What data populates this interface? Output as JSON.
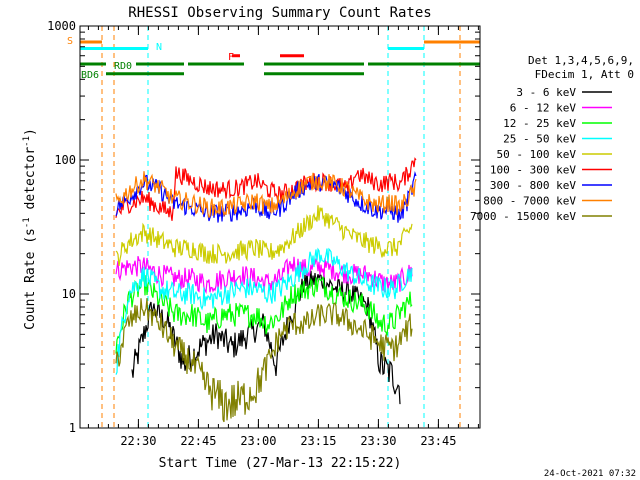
{
  "chart_data": {
    "type": "line",
    "title": "RHESSI Observing Summary Count Rates",
    "xlabel": "Start Time (27-Mar-13 22:15:22)",
    "ylabel": "Count Rate (s",
    "ylabel_sup1": "-1",
    "ylabel_mid": " detector",
    "ylabel_sup2": "-1",
    "ylabel_end": ")",
    "y_scale": "log",
    "ylim": [
      1,
      1000
    ],
    "xlim_minutes": [
      0,
      100
    ],
    "y_ticks": [
      "1",
      "10",
      "100",
      "1000"
    ],
    "x_ticks": [
      {
        "label": "22:30",
        "min": 14.6
      },
      {
        "label": "22:45",
        "min": 29.6
      },
      {
        "label": "23:00",
        "min": 44.6
      },
      {
        "label": "23:15",
        "min": 59.6
      },
      {
        "label": "23:30",
        "min": 74.6
      },
      {
        "label": "23:45",
        "min": 89.6
      }
    ],
    "legend_position": "right",
    "legend_header": [
      "Det 1,3,4,5,6,9,",
      "FDecim 1, Att 0"
    ],
    "series": [
      {
        "name": "3 - 6 keV",
        "color": "#000000",
        "values": [
          [
            13,
            2.5
          ],
          [
            18,
            8
          ],
          [
            22,
            6
          ],
          [
            26,
            3
          ],
          [
            30,
            4
          ],
          [
            34,
            5
          ],
          [
            38,
            4
          ],
          [
            42,
            5
          ],
          [
            46,
            6
          ],
          [
            49,
            3
          ],
          [
            52,
            6
          ],
          [
            56,
            12
          ],
          [
            60,
            13
          ],
          [
            64,
            11
          ],
          [
            68,
            10
          ],
          [
            72,
            8
          ],
          [
            75,
            3
          ],
          [
            78,
            2.5
          ],
          [
            80,
            2
          ]
        ]
      },
      {
        "name": "6 - 12 keV",
        "color": "#ff00ff",
        "values": [
          [
            9,
            15
          ],
          [
            12,
            16
          ],
          [
            16,
            16
          ],
          [
            20,
            14
          ],
          [
            24,
            13
          ],
          [
            28,
            13
          ],
          [
            32,
            12
          ],
          [
            36,
            13
          ],
          [
            40,
            14
          ],
          [
            44,
            13
          ],
          [
            47,
            12
          ],
          [
            50,
            13
          ],
          [
            53,
            17
          ],
          [
            57,
            15
          ],
          [
            60,
            16
          ],
          [
            64,
            15
          ],
          [
            68,
            14
          ],
          [
            72,
            14
          ],
          [
            76,
            12
          ],
          [
            79,
            12
          ],
          [
            81,
            13
          ],
          [
            83,
            15
          ]
        ]
      },
      {
        "name": "12 - 25 keV",
        "color": "#00ff00",
        "values": [
          [
            9,
            4
          ],
          [
            12,
            9
          ],
          [
            16,
            12
          ],
          [
            20,
            9
          ],
          [
            24,
            7
          ],
          [
            28,
            7
          ],
          [
            32,
            6
          ],
          [
            36,
            7
          ],
          [
            40,
            7
          ],
          [
            44,
            7
          ],
          [
            47,
            6
          ],
          [
            50,
            7
          ],
          [
            53,
            10
          ],
          [
            57,
            11
          ],
          [
            60,
            12
          ],
          [
            64,
            10
          ],
          [
            68,
            9
          ],
          [
            72,
            8
          ],
          [
            75,
            6
          ],
          [
            78,
            6
          ],
          [
            81,
            8
          ],
          [
            83,
            9
          ]
        ]
      },
      {
        "name": "25 - 50 keV",
        "color": "#00ffff",
        "values": [
          [
            9,
            3
          ],
          [
            12,
            10
          ],
          [
            16,
            14
          ],
          [
            20,
            11
          ],
          [
            24,
            10
          ],
          [
            28,
            10
          ],
          [
            32,
            9
          ],
          [
            36,
            10
          ],
          [
            40,
            11
          ],
          [
            44,
            11
          ],
          [
            47,
            10
          ],
          [
            50,
            11
          ],
          [
            53,
            13
          ],
          [
            57,
            17
          ],
          [
            60,
            20
          ],
          [
            64,
            17
          ],
          [
            68,
            14
          ],
          [
            72,
            12
          ],
          [
            76,
            11
          ],
          [
            79,
            11
          ],
          [
            81,
            13
          ],
          [
            83,
            15
          ]
        ]
      },
      {
        "name": "50 - 100 keV",
        "color": "#cccc00",
        "values": [
          [
            9,
            18
          ],
          [
            12,
            24
          ],
          [
            16,
            29
          ],
          [
            20,
            25
          ],
          [
            24,
            22
          ],
          [
            28,
            22
          ],
          [
            32,
            20
          ],
          [
            36,
            20
          ],
          [
            40,
            21
          ],
          [
            44,
            22
          ],
          [
            47,
            20
          ],
          [
            50,
            22
          ],
          [
            53,
            26
          ],
          [
            57,
            34
          ],
          [
            60,
            40
          ],
          [
            64,
            33
          ],
          [
            68,
            27
          ],
          [
            72,
            24
          ],
          [
            76,
            22
          ],
          [
            79,
            22
          ],
          [
            81,
            26
          ],
          [
            83,
            32
          ]
        ]
      },
      {
        "name": "100 - 300 keV",
        "color": "#ff0000",
        "values": [
          [
            9,
            40
          ],
          [
            12,
            47
          ],
          [
            16,
            52
          ],
          [
            20,
            44
          ],
          [
            23,
            40
          ],
          [
            24,
            80
          ],
          [
            28,
            70
          ],
          [
            32,
            62
          ],
          [
            36,
            60
          ],
          [
            40,
            62
          ],
          [
            44,
            70
          ],
          [
            47,
            60
          ],
          [
            50,
            55
          ],
          [
            54,
            62
          ],
          [
            57,
            68
          ],
          [
            60,
            70
          ],
          [
            64,
            66
          ],
          [
            67,
            60
          ],
          [
            69,
            80
          ],
          [
            72,
            72
          ],
          [
            75,
            66
          ],
          [
            78,
            70
          ],
          [
            80,
            66
          ],
          [
            82,
            80
          ],
          [
            84,
            105
          ]
        ]
      },
      {
        "name": "300 - 800 keV",
        "color": "#0000ff",
        "values": [
          [
            9,
            44
          ],
          [
            12,
            52
          ],
          [
            16,
            68
          ],
          [
            20,
            60
          ],
          [
            23,
            48
          ],
          [
            28,
            44
          ],
          [
            32,
            40
          ],
          [
            36,
            40
          ],
          [
            40,
            42
          ],
          [
            44,
            46
          ],
          [
            47,
            40
          ],
          [
            50,
            44
          ],
          [
            54,
            58
          ],
          [
            57,
            66
          ],
          [
            60,
            68
          ],
          [
            64,
            64
          ],
          [
            67,
            56
          ],
          [
            70,
            48
          ],
          [
            74,
            42
          ],
          [
            78,
            42
          ],
          [
            80,
            38
          ],
          [
            82,
            50
          ],
          [
            84,
            75
          ]
        ]
      },
      {
        "name": "800 - 7000 keV",
        "color": "#ff8000",
        "values": [
          [
            9,
            48
          ],
          [
            12,
            58
          ],
          [
            16,
            72
          ],
          [
            20,
            62
          ],
          [
            23,
            52
          ],
          [
            28,
            48
          ],
          [
            32,
            44
          ],
          [
            36,
            44
          ],
          [
            40,
            46
          ],
          [
            44,
            50
          ],
          [
            47,
            44
          ],
          [
            50,
            48
          ],
          [
            54,
            60
          ],
          [
            57,
            68
          ],
          [
            60,
            70
          ],
          [
            64,
            66
          ],
          [
            67,
            60
          ],
          [
            70,
            52
          ],
          [
            74,
            46
          ],
          [
            78,
            48
          ],
          [
            80,
            44
          ],
          [
            82,
            52
          ],
          [
            84,
            62
          ]
        ]
      },
      {
        "name": "7000 - 15000 keV",
        "color": "#808000",
        "values": [
          [
            9,
            3
          ],
          [
            12,
            6
          ],
          [
            16,
            8
          ],
          [
            20,
            6
          ],
          [
            24,
            4
          ],
          [
            28,
            3
          ],
          [
            32,
            2
          ],
          [
            36,
            1.5
          ],
          [
            40,
            1.6
          ],
          [
            44,
            2
          ],
          [
            47,
            3
          ],
          [
            50,
            5
          ],
          [
            53,
            6
          ],
          [
            57,
            6
          ],
          [
            60,
            7
          ],
          [
            64,
            7
          ],
          [
            68,
            6
          ],
          [
            72,
            5
          ],
          [
            76,
            4
          ],
          [
            79,
            4
          ],
          [
            81,
            5
          ],
          [
            83,
            6
          ]
        ]
      }
    ],
    "flag_bars": [
      {
        "label": "S",
        "color": "#ff8000",
        "segments": [
          [
            0,
            5.5
          ],
          [
            86,
            100
          ]
        ],
        "level": 760
      },
      {
        "label": "N",
        "color": "#00ffff",
        "segments": [
          [
            0,
            17
          ],
          [
            77,
            86
          ]
        ],
        "level": 680
      },
      {
        "label": "F",
        "color": "#ff0000",
        "segments": [
          [
            38,
            40
          ],
          [
            50,
            56
          ]
        ],
        "level": 600
      },
      {
        "label": "RD0",
        "color": "#008000",
        "segments": [
          [
            0,
            6.5
          ],
          [
            14,
            26
          ],
          [
            27,
            41
          ],
          [
            46,
            71
          ],
          [
            72,
            100
          ]
        ],
        "level": 520
      },
      {
        "label": "BD6",
        "color": "#008000",
        "segments": [
          [
            6.5,
            26
          ],
          [
            46,
            71
          ]
        ],
        "level": 440
      }
    ],
    "vlines": [
      {
        "min": 5.5,
        "color": "#ff8000"
      },
      {
        "min": 8.5,
        "color": "#ff8000"
      },
      {
        "min": 17,
        "color": "#00ffff"
      },
      {
        "min": 77,
        "color": "#00ffff"
      },
      {
        "min": 86,
        "color": "#00ffff"
      },
      {
        "min": 95,
        "color": "#ff8000"
      }
    ]
  },
  "footer": {
    "timestamp": "24-Oct-2021 07:32"
  }
}
